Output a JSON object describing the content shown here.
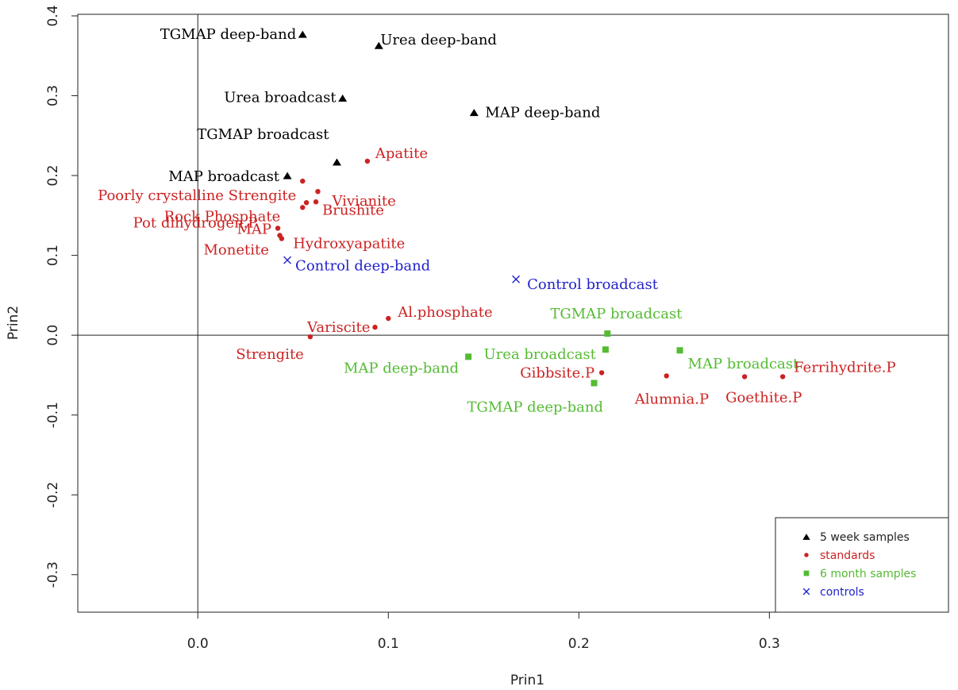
{
  "chart_data": {
    "type": "scatter",
    "xlabel": "Prin1",
    "ylabel": "Prin2",
    "xlim": [
      -0.063,
      0.394
    ],
    "ylim": [
      -0.347,
      0.402
    ],
    "x_ticks": [
      0.0,
      0.1,
      0.2,
      0.3
    ],
    "x_tick_labels": [
      "0.0",
      "0.1",
      "0.2",
      "0.3"
    ],
    "y_ticks": [
      -0.3,
      -0.2,
      -0.1,
      0.0,
      0.1,
      0.2,
      0.3,
      0.4
    ],
    "y_tick_labels": [
      "-0.3",
      "-0.2",
      "-0.1",
      "0.0",
      "0.1",
      "0.2",
      "0.3",
      "0.4"
    ],
    "reference_lines": {
      "x": 0,
      "y": 0
    },
    "grid": false,
    "legend_position": "bottom-right",
    "series": [
      {
        "name": "5 week samples",
        "marker": "triangle",
        "color": "#000000",
        "points": [
          {
            "x": 0.055,
            "y": 0.377,
            "label": "TGMAP deep-band"
          },
          {
            "x": 0.095,
            "y": 0.363,
            "label": "Urea deep-band"
          },
          {
            "x": 0.076,
            "y": 0.297,
            "label": "Urea broadcast"
          },
          {
            "x": 0.145,
            "y": 0.279,
            "label": "MAP deep-band"
          },
          {
            "x": 0.073,
            "y": 0.217,
            "label": "TGMAP broadcast"
          },
          {
            "x": 0.047,
            "y": 0.2,
            "label": "MAP broadcast"
          }
        ]
      },
      {
        "name": "standards",
        "marker": "dot",
        "color": "#cc2222",
        "points": [
          {
            "x": 0.089,
            "y": 0.218,
            "label": "Apatite"
          },
          {
            "x": 0.055,
            "y": 0.193,
            "label": "Poorly crystalline Strengite"
          },
          {
            "x": 0.063,
            "y": 0.18,
            "label": "Vivianite"
          },
          {
            "x": 0.062,
            "y": 0.167,
            "label": "Brushite"
          },
          {
            "x": 0.057,
            "y": 0.166,
            "label": ""
          },
          {
            "x": 0.055,
            "y": 0.16,
            "label": "Rock Phosphate"
          },
          {
            "x": 0.042,
            "y": 0.134,
            "label": "MAP"
          },
          {
            "x": 0.043,
            "y": 0.125,
            "label": "Pot dihydrogen.P"
          },
          {
            "x": 0.044,
            "y": 0.121,
            "label": "Monetite"
          },
          {
            "x": 0.1,
            "y": 0.021,
            "label": "Al.phosphate"
          },
          {
            "x": 0.093,
            "y": 0.01,
            "label": "Variscite"
          },
          {
            "x": 0.059,
            "y": -0.002,
            "label": "Strengite"
          },
          {
            "x": 0.212,
            "y": -0.047,
            "label": "Gibbsite.P"
          },
          {
            "x": 0.246,
            "y": -0.051,
            "label": "Alumnia.P"
          },
          {
            "x": 0.287,
            "y": -0.052,
            "label": "Goethite.P"
          },
          {
            "x": 0.307,
            "y": -0.052,
            "label": "Ferrihydrite.P"
          }
        ],
        "annotations": [
          {
            "text": "Hydroxyapatite",
            "x": 0.05,
            "y": 0.115
          }
        ]
      },
      {
        "name": "6 month samples",
        "marker": "square",
        "color": "#55bb33",
        "points": [
          {
            "x": 0.215,
            "y": 0.002,
            "label": "TGMAP broadcast"
          },
          {
            "x": 0.214,
            "y": -0.018,
            "label": "Urea broadcast"
          },
          {
            "x": 0.253,
            "y": -0.019,
            "label": "MAP broadcast"
          },
          {
            "x": 0.142,
            "y": -0.027,
            "label": "MAP deep-band"
          },
          {
            "x": 0.208,
            "y": -0.06,
            "label": "TGMAP deep-band"
          }
        ]
      },
      {
        "name": "controls",
        "marker": "x",
        "color": "#2222cc",
        "points": [
          {
            "x": 0.047,
            "y": 0.094,
            "label": "Control deep-band"
          },
          {
            "x": 0.167,
            "y": 0.07,
            "label": "Control broadcast"
          }
        ]
      }
    ]
  }
}
